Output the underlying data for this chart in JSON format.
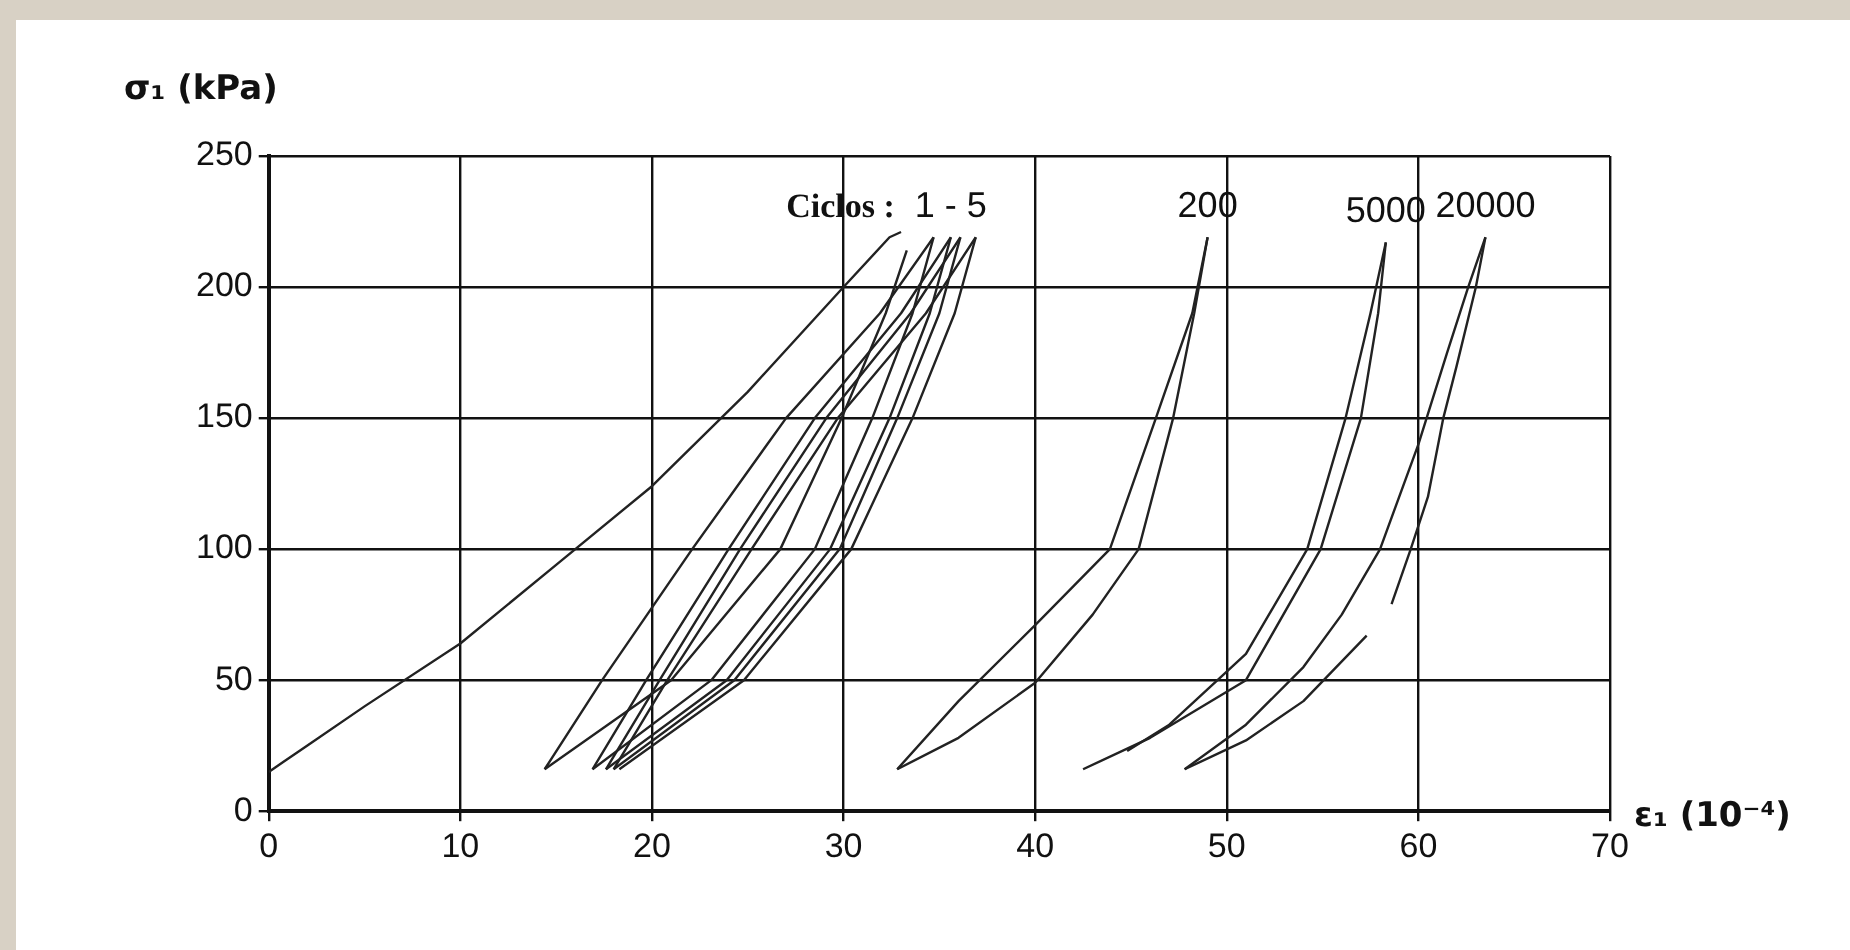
{
  "chart_data": {
    "type": "line",
    "xlabel": "ε₁ (10⁻⁴)",
    "ylabel": "σ₁ (kPa)",
    "xlim": [
      0,
      70
    ],
    "xticks": [
      0,
      10,
      20,
      30,
      40,
      50,
      60,
      70
    ],
    "ylim": [
      0,
      250
    ],
    "yticks": [
      0,
      50,
      100,
      150,
      200,
      250
    ],
    "grid": true,
    "legend": false,
    "marker": "none",
    "line_style": "solid",
    "series": [
      {
        "color": "#222222",
        "x": [
          0,
          2,
          5,
          10,
          15,
          20,
          25,
          30,
          32.4,
          33.0
        ],
        "values": [
          15,
          25,
          40,
          64,
          94,
          124,
          160,
          200,
          219,
          221
        ]
      },
      {
        "color": "#222222",
        "x": [
          14.4,
          21.0,
          26.7,
          29.9,
          32.2,
          33.3
        ],
        "values": [
          16,
          50,
          100,
          150,
          190,
          214
        ]
      },
      {
        "color": "#222222",
        "x": [
          14.4,
          17.4,
          22.1,
          27.0,
          31.9,
          34.7
        ],
        "values": [
          16,
          50,
          100,
          150,
          190,
          219
        ]
      },
      {
        "color": "#222222",
        "x": [
          16.9,
          23.1,
          28.5,
          31.5,
          33.6,
          34.7
        ],
        "values": [
          16,
          50,
          100,
          150,
          190,
          219
        ]
      },
      {
        "color": "#222222",
        "x": [
          16.9,
          19.7,
          24.0,
          28.5,
          33.0,
          35.6
        ],
        "values": [
          16,
          50,
          100,
          150,
          190,
          219
        ]
      },
      {
        "color": "#222222",
        "x": [
          17.6,
          23.9,
          29.3,
          32.4,
          34.5,
          35.6
        ],
        "values": [
          16,
          50,
          100,
          150,
          190,
          219
        ]
      },
      {
        "color": "#222222",
        "x": [
          17.6,
          20.4,
          24.6,
          29.1,
          33.5,
          36.1
        ],
        "values": [
          16,
          50,
          100,
          150,
          190,
          219
        ]
      },
      {
        "color": "#222222",
        "x": [
          18.0,
          24.3,
          29.8,
          32.8,
          35.0,
          36.1
        ],
        "values": [
          16,
          50,
          100,
          150,
          190,
          219
        ]
      },
      {
        "color": "#222222",
        "x": [
          18.0,
          20.8,
          25.2,
          29.7,
          34.3,
          36.9
        ],
        "values": [
          16,
          50,
          100,
          150,
          190,
          219
        ]
      },
      {
        "color": "#222222",
        "x": [
          18.3,
          24.8,
          30.4,
          33.6,
          35.8,
          36.9
        ],
        "values": [
          16,
          50,
          100,
          150,
          190,
          219
        ]
      },
      {
        "color": "#222222",
        "x": [
          32.8,
          36,
          40,
          43,
          45.4,
          47.2,
          48.3,
          49
        ],
        "values": [
          16,
          28,
          49,
          75,
          100,
          150,
          190,
          219
        ]
      },
      {
        "color": "#222222",
        "x": [
          32.8,
          36,
          40,
          43.9,
          46.3,
          48.2,
          49
        ],
        "values": [
          16,
          42,
          71,
          100,
          150,
          190,
          219
        ]
      },
      {
        "color": "#222222",
        "x": [
          44.8,
          47,
          51,
          54.2,
          56.2,
          57.5,
          58.3
        ],
        "values": [
          23,
          33,
          60,
          100,
          150,
          190,
          217
        ]
      },
      {
        "color": "#222222",
        "x": [
          42.5,
          46,
          51.0,
          54.9,
          57.0,
          57.9,
          58.3
        ],
        "values": [
          16,
          28,
          50,
          100,
          150,
          190,
          217
        ]
      },
      {
        "color": "#222222",
        "x": [
          58.6,
          59.6,
          60.5,
          61.3,
          62.0,
          63.0,
          63.5
        ],
        "values": [
          79,
          100,
          120,
          150,
          170,
          200,
          219
        ]
      },
      {
        "color": "#222222",
        "x": [
          47.8,
          51,
          54,
          56,
          58,
          60,
          61.5,
          62.6,
          63.5
        ],
        "values": [
          16,
          33,
          55,
          75,
          100,
          140,
          175,
          200,
          219
        ]
      },
      {
        "color": "#222222",
        "x": [
          47.8,
          51,
          54,
          57.3
        ],
        "values": [
          16,
          27,
          42,
          67
        ]
      }
    ],
    "annotations": [
      "Ciclos :",
      {
        "text": "1 - 5",
        "x": 35.6,
        "y": 219
      },
      {
        "text": "200",
        "x": 49,
        "y": 219
      },
      {
        "text": "5000",
        "x": 58.3,
        "y": 217
      },
      {
        "text": "20000",
        "x": 63.5,
        "y": 219
      }
    ]
  }
}
